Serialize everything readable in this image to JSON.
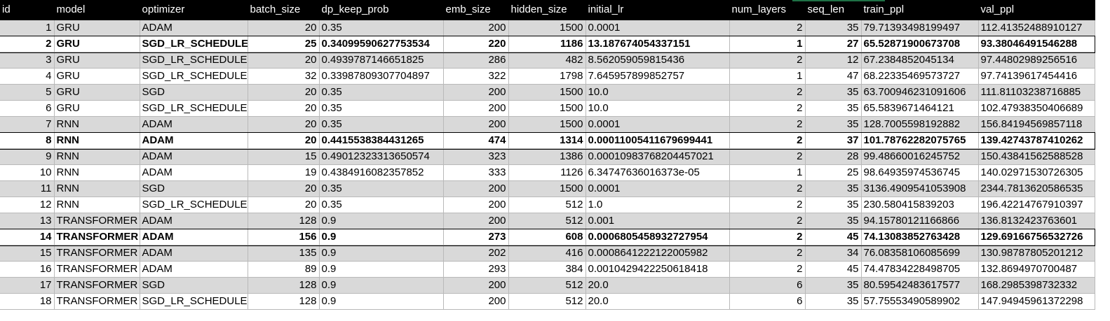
{
  "columns": [
    "id",
    "model",
    "optimizer",
    "batch_size",
    "dp_keep_prob",
    "emb_size",
    "hidden_size",
    "initial_lr",
    "num_layers",
    "seq_len",
    "train_ppl",
    "val_ppl"
  ],
  "rows": [
    {
      "bold": false,
      "cells": [
        "1",
        "GRU",
        "ADAM",
        "20",
        "0.35",
        "200",
        "1500",
        "0.0001",
        "2",
        "35",
        "79.71393498199497",
        "112.41352488910127"
      ]
    },
    {
      "bold": true,
      "cells": [
        "2",
        "GRU",
        "SGD_LR_SCHEDULE",
        "25",
        "0.3409959062775353​4",
        "220",
        "1186",
        "13.187674054337151",
        "1",
        "27",
        "65.52871900673708",
        "93.38046491546288"
      ]
    },
    {
      "bold": false,
      "cells": [
        "3",
        "GRU",
        "SGD_LR_SCHEDULE",
        "20",
        "0.4939787146651825",
        "286",
        "482",
        "8.562059059815436",
        "2",
        "12",
        "67.2384852045134",
        "97.44802989256516"
      ]
    },
    {
      "bold": false,
      "cells": [
        "4",
        "GRU",
        "SGD_LR_SCHEDULE",
        "32",
        "0.33987809307704897",
        "322",
        "1798",
        "7.645957899852757",
        "1",
        "47",
        "68.22335469573727",
        "97.74139617454416"
      ]
    },
    {
      "bold": false,
      "cells": [
        "5",
        "GRU",
        "SGD",
        "20",
        "0.35",
        "200",
        "1500",
        "10.0",
        "2",
        "35",
        "63.700946231091606",
        "111.81103238716885"
      ]
    },
    {
      "bold": false,
      "cells": [
        "6",
        "GRU",
        "SGD_LR_SCHEDULE",
        "20",
        "0.35",
        "200",
        "1500",
        "10.0",
        "2",
        "35",
        "65.5839671464121",
        "102.47938350406689"
      ]
    },
    {
      "bold": false,
      "cells": [
        "7",
        "RNN",
        "ADAM",
        "20",
        "0.35",
        "200",
        "1500",
        "0.0001",
        "2",
        "35",
        "128.7005598192882",
        "156.84194569857118"
      ]
    },
    {
      "bold": true,
      "cells": [
        "8",
        "RNN",
        "ADAM",
        "20",
        "0.4415538384431265",
        "474",
        "1314",
        "0.00011005411679699441",
        "2",
        "37",
        "101.78762282075765",
        "139.42743787410262"
      ]
    },
    {
      "bold": false,
      "cells": [
        "9",
        "RNN",
        "ADAM",
        "15",
        "0.49012323313650574",
        "323",
        "1386",
        "0.00010983768204457021",
        "2",
        "28",
        "99.48660016245752",
        "150.43841562588528"
      ]
    },
    {
      "bold": false,
      "cells": [
        "10",
        "RNN",
        "ADAM",
        "19",
        "0.4384916082357852",
        "333",
        "1126",
        "6.34747636016373e-05",
        "1",
        "25",
        "98.64935974536745",
        "140.02971530726305"
      ]
    },
    {
      "bold": false,
      "cells": [
        "11",
        "RNN",
        "SGD",
        "20",
        "0.35",
        "200",
        "1500",
        "0.0001",
        "2",
        "35",
        "3136.4909541053908",
        "2344.7813620586535"
      ]
    },
    {
      "bold": false,
      "cells": [
        "12",
        "RNN",
        "SGD_LR_SCHEDULE",
        "20",
        "0.35",
        "200",
        "512",
        "1.0",
        "2",
        "35",
        "230.580415839203",
        "196.42214767910397"
      ]
    },
    {
      "bold": false,
      "cells": [
        "13",
        "TRANSFORMER",
        "ADAM",
        "128",
        "0.9",
        "200",
        "512",
        "0.001",
        "2",
        "35",
        "94.15780121166866",
        "136.8132423763601"
      ]
    },
    {
      "bold": true,
      "cells": [
        "14",
        "TRANSFORMER",
        "ADAM",
        "156",
        "0.9",
        "273",
        "608",
        "0.0006805458932727954",
        "2",
        "45",
        "74.13083852763428",
        "129.69166756532726"
      ]
    },
    {
      "bold": false,
      "cells": [
        "15",
        "TRANSFORMER",
        "ADAM",
        "135",
        "0.9",
        "202",
        "416",
        "0.0008641222122005982",
        "2",
        "34",
        "76.08358106085699",
        "130.98787805201212"
      ]
    },
    {
      "bold": false,
      "cells": [
        "16",
        "TRANSFORMER",
        "ADAM",
        "89",
        "0.9",
        "293",
        "384",
        "0.0010429422250618418",
        "2",
        "45",
        "74.47834228498705",
        "132.8694970700487"
      ]
    },
    {
      "bold": false,
      "cells": [
        "17",
        "TRANSFORMER",
        "SGD",
        "128",
        "0.9",
        "200",
        "512",
        "20.0",
        "6",
        "35",
        "80.59542483617577",
        "168.2985398732332"
      ]
    },
    {
      "bold": false,
      "cells": [
        "18",
        "TRANSFORMER",
        "SGD_LR_SCHEDULE",
        "128",
        "0.9",
        "200",
        "512",
        "20.0",
        "6",
        "35",
        "57.75553490589902",
        "147.94945961372298"
      ]
    }
  ]
}
